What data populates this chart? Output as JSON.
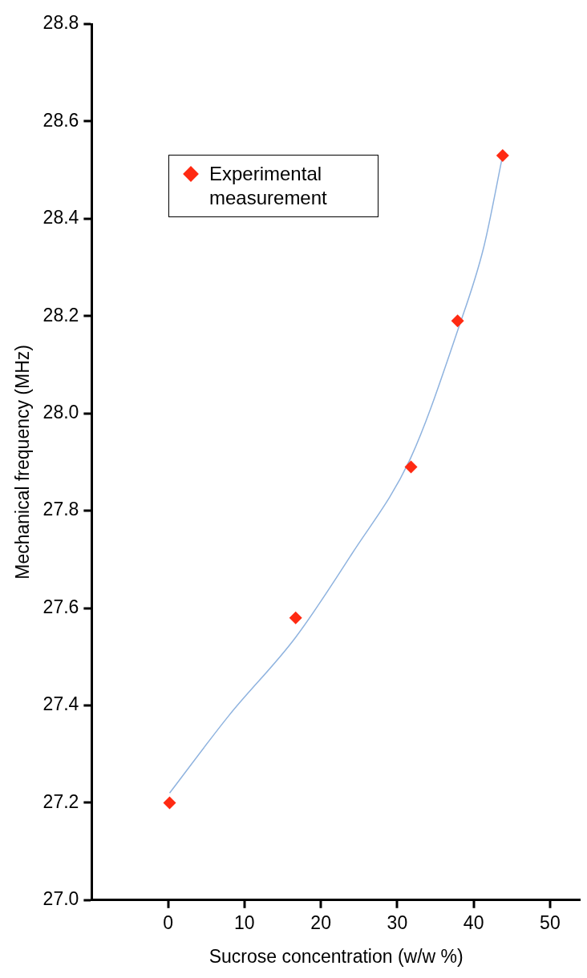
{
  "chart_data": {
    "type": "scatter",
    "xlabel": "Sucrose concentration (w/w %)",
    "ylabel": "Mechanical frequency (MHz)",
    "xlim": [
      -10,
      54
    ],
    "xticks": [
      0,
      10,
      20,
      30,
      40,
      50
    ],
    "ylim": [
      27.0,
      28.8
    ],
    "yticks": [
      {
        "value": 27.0,
        "label": "27.0"
      },
      27.2,
      27.4,
      27.6,
      27.8,
      {
        "value": 28.0,
        "label": "28.0"
      },
      28.2,
      28.4,
      28.6,
      28.8
    ],
    "grid": false,
    "legend": "top left",
    "marker": "diamond",
    "series": [
      {
        "name": "Experimental measurement",
        "color": "#ff2a12",
        "x": [
          0.2,
          16.7,
          31.8,
          37.9,
          43.8
        ],
        "values": [
          27.2,
          27.58,
          27.89,
          28.19,
          28.53
        ]
      },
      {
        "type": "line",
        "color": "#8fb3df",
        "marker": "none",
        "line_style": "solid",
        "x": [
          0.2,
          8,
          16.7,
          24,
          31.8,
          37.9,
          41.3,
          43.8
        ],
        "values": [
          27.22,
          27.38,
          27.54,
          27.71,
          27.91,
          28.17,
          28.34,
          28.53
        ]
      }
    ]
  }
}
